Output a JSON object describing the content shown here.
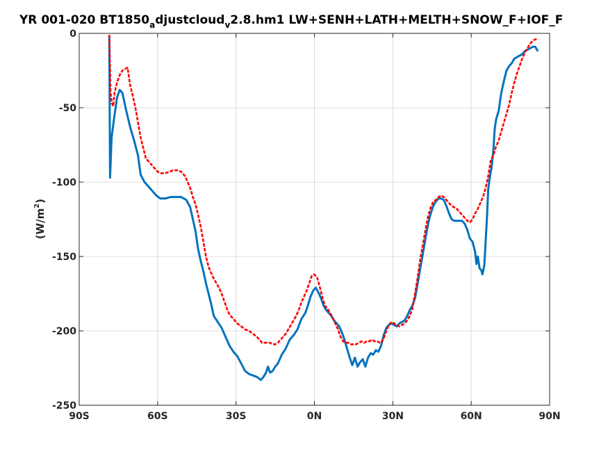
{
  "chart_data": {
    "type": "line",
    "title_parts": [
      "YR 001-020 BT1850",
      "a",
      "djustcloud",
      "v",
      "2.8.hm1 LW+SENH+LATH+MELTH+SNOW_F+IOF_F"
    ],
    "ylabel_parts": [
      "(W/m",
      "2",
      ")"
    ],
    "xlim": [
      -90,
      90
    ],
    "ylim": [
      -250,
      0
    ],
    "x_ticks": [
      -90,
      -60,
      -30,
      0,
      30,
      60,
      90
    ],
    "x_tick_labels": [
      "90S",
      "60S",
      "30S",
      "0N",
      "30N",
      "60N",
      "90N"
    ],
    "y_ticks": [
      0,
      -50,
      -100,
      -150,
      -200,
      -250
    ],
    "y_tick_labels": [
      "0",
      "-50",
      "-100",
      "-150",
      "-200",
      "-250"
    ],
    "grid": true,
    "series": [
      {
        "color": "#0072bd",
        "style": "solid",
        "points": [
          [
            -78.5,
            -2
          ],
          [
            -78.2,
            -97
          ],
          [
            -77.6,
            -70
          ],
          [
            -76.5,
            -55
          ],
          [
            -75.5,
            -43
          ],
          [
            -74.5,
            -38
          ],
          [
            -73.5,
            -40
          ],
          [
            -72,
            -52
          ],
          [
            -70.5,
            -63
          ],
          [
            -69,
            -72
          ],
          [
            -67.5,
            -82
          ],
          [
            -66.5,
            -95
          ],
          [
            -65,
            -100
          ],
          [
            -63.5,
            -103
          ],
          [
            -62,
            -106
          ],
          [
            -60.5,
            -109
          ],
          [
            -59,
            -111
          ],
          [
            -57,
            -111
          ],
          [
            -55,
            -110
          ],
          [
            -53,
            -110
          ],
          [
            -51,
            -110
          ],
          [
            -49,
            -112
          ],
          [
            -47.5,
            -117
          ],
          [
            -46.5,
            -125
          ],
          [
            -45.5,
            -133
          ],
          [
            -44.5,
            -145
          ],
          [
            -43.5,
            -153
          ],
          [
            -42.5,
            -160
          ],
          [
            -41.5,
            -168
          ],
          [
            -40.5,
            -175
          ],
          [
            -39.5,
            -182
          ],
          [
            -38.5,
            -190
          ],
          [
            -37,
            -194
          ],
          [
            -35.5,
            -198
          ],
          [
            -34,
            -204
          ],
          [
            -32.5,
            -210
          ],
          [
            -31,
            -214
          ],
          [
            -29.5,
            -217
          ],
          [
            -28,
            -222
          ],
          [
            -26.5,
            -227
          ],
          [
            -25,
            -229
          ],
          [
            -23.5,
            -230
          ],
          [
            -22,
            -231
          ],
          [
            -20.5,
            -233
          ],
          [
            -19.5,
            -231
          ],
          [
            -18.5,
            -228
          ],
          [
            -17.8,
            -224
          ],
          [
            -17,
            -228
          ],
          [
            -16,
            -227
          ],
          [
            -15,
            -224
          ],
          [
            -14,
            -222
          ],
          [
            -12.5,
            -216
          ],
          [
            -11,
            -212
          ],
          [
            -9.5,
            -206
          ],
          [
            -8,
            -203
          ],
          [
            -6.5,
            -199
          ],
          [
            -5,
            -192
          ],
          [
            -3.5,
            -188
          ],
          [
            -2.5,
            -183
          ],
          [
            -1.5,
            -177
          ],
          [
            -0.5,
            -173
          ],
          [
            0.5,
            -171
          ],
          [
            1.5,
            -174
          ],
          [
            2.5,
            -178
          ],
          [
            3.5,
            -183
          ],
          [
            4.5,
            -186
          ],
          [
            5.5,
            -188
          ],
          [
            6.5,
            -190
          ],
          [
            7.5,
            -193
          ],
          [
            8.5,
            -195
          ],
          [
            9.5,
            -197
          ],
          [
            10.5,
            -201
          ],
          [
            11.5,
            -206
          ],
          [
            12.5,
            -212
          ],
          [
            13.5,
            -218
          ],
          [
            14.5,
            -223
          ],
          [
            15.5,
            -218
          ],
          [
            16.5,
            -224
          ],
          [
            17.5,
            -221
          ],
          [
            18.5,
            -219
          ],
          [
            19.5,
            -224
          ],
          [
            20.5,
            -218
          ],
          [
            21.5,
            -215
          ],
          [
            22.5,
            -216
          ],
          [
            23.5,
            -213
          ],
          [
            24.5,
            -214
          ],
          [
            25.5,
            -210
          ],
          [
            26.5,
            -203
          ],
          [
            27.5,
            -198
          ],
          [
            28.5,
            -196
          ],
          [
            29.5,
            -195
          ],
          [
            30.5,
            -196
          ],
          [
            31.5,
            -197
          ],
          [
            32.5,
            -195
          ],
          [
            33.5,
            -194
          ],
          [
            34.5,
            -193
          ],
          [
            35.5,
            -190
          ],
          [
            36.5,
            -186
          ],
          [
            37.5,
            -183
          ],
          [
            38.5,
            -178
          ],
          [
            39.5,
            -168
          ],
          [
            40.5,
            -158
          ],
          [
            41.5,
            -148
          ],
          [
            42.5,
            -138
          ],
          [
            43.5,
            -128
          ],
          [
            44.5,
            -121
          ],
          [
            45.5,
            -116
          ],
          [
            46.5,
            -113
          ],
          [
            47.5,
            -111
          ],
          [
            48.5,
            -111
          ],
          [
            49.5,
            -112
          ],
          [
            50.5,
            -116
          ],
          [
            51.5,
            -121
          ],
          [
            52.5,
            -125
          ],
          [
            53.5,
            -126
          ],
          [
            55,
            -126
          ],
          [
            56.5,
            -126
          ],
          [
            57.5,
            -128
          ],
          [
            58.5,
            -132
          ],
          [
            59.5,
            -138
          ],
          [
            60.5,
            -140
          ],
          [
            61.5,
            -147
          ],
          [
            62,
            -155
          ],
          [
            62.5,
            -150
          ],
          [
            63.2,
            -158
          ],
          [
            63.8,
            -159
          ],
          [
            64.3,
            -162
          ],
          [
            65,
            -156
          ],
          [
            65.5,
            -140
          ],
          [
            66,
            -125
          ],
          [
            66.5,
            -105
          ],
          [
            67,
            -98
          ],
          [
            67.8,
            -90
          ],
          [
            68.5,
            -78
          ],
          [
            69,
            -64
          ],
          [
            69.5,
            -58
          ],
          [
            70.5,
            -52
          ],
          [
            71.5,
            -40
          ],
          [
            72.5,
            -32
          ],
          [
            73.5,
            -25
          ],
          [
            74.5,
            -22
          ],
          [
            75.5,
            -20
          ],
          [
            76.5,
            -17
          ],
          [
            77.5,
            -16
          ],
          [
            78.5,
            -15
          ],
          [
            79.5,
            -14
          ],
          [
            80.5,
            -12
          ],
          [
            81.5,
            -11
          ],
          [
            82.5,
            -10
          ],
          [
            83.5,
            -9
          ],
          [
            84.5,
            -9
          ],
          [
            85.5,
            -12
          ]
        ]
      },
      {
        "color": "#ff0000",
        "style": "dashed",
        "points": [
          [
            -78.5,
            -1
          ],
          [
            -78,
            -40
          ],
          [
            -77.5,
            -47
          ],
          [
            -77,
            -49
          ],
          [
            -76.5,
            -40
          ],
          [
            -75.5,
            -33
          ],
          [
            -74.5,
            -28
          ],
          [
            -73.5,
            -25
          ],
          [
            -72.5,
            -24
          ],
          [
            -71.5,
            -23
          ],
          [
            -70.5,
            -35
          ],
          [
            -69.5,
            -42
          ],
          [
            -68.5,
            -50
          ],
          [
            -67.5,
            -60
          ],
          [
            -66.5,
            -70
          ],
          [
            -65.5,
            -77
          ],
          [
            -64.5,
            -84
          ],
          [
            -63,
            -87
          ],
          [
            -61.5,
            -90
          ],
          [
            -60,
            -93
          ],
          [
            -58.5,
            -94
          ],
          [
            -57,
            -94
          ],
          [
            -55.5,
            -93
          ],
          [
            -54,
            -92
          ],
          [
            -52.5,
            -92
          ],
          [
            -51,
            -93
          ],
          [
            -49.5,
            -96
          ],
          [
            -48.5,
            -100
          ],
          [
            -47.5,
            -104
          ],
          [
            -46.5,
            -110
          ],
          [
            -45.5,
            -115
          ],
          [
            -44.5,
            -122
          ],
          [
            -43.5,
            -130
          ],
          [
            -42.5,
            -140
          ],
          [
            -41.5,
            -150
          ],
          [
            -40.5,
            -157
          ],
          [
            -39.5,
            -161
          ],
          [
            -38.5,
            -165
          ],
          [
            -37.5,
            -168
          ],
          [
            -36.5,
            -171
          ],
          [
            -35.5,
            -175
          ],
          [
            -34.5,
            -180
          ],
          [
            -33.5,
            -185
          ],
          [
            -32.5,
            -189
          ],
          [
            -31,
            -192
          ],
          [
            -29.5,
            -195
          ],
          [
            -28,
            -197
          ],
          [
            -26.5,
            -199
          ],
          [
            -25,
            -200
          ],
          [
            -23.5,
            -202
          ],
          [
            -22,
            -204
          ],
          [
            -21,
            -206
          ],
          [
            -20,
            -208
          ],
          [
            -19,
            -208
          ],
          [
            -18,
            -208
          ],
          [
            -17,
            -208
          ],
          [
            -16,
            -209
          ],
          [
            -15,
            -209
          ],
          [
            -14,
            -208
          ],
          [
            -13,
            -206
          ],
          [
            -12,
            -204
          ],
          [
            -11,
            -202
          ],
          [
            -10,
            -199
          ],
          [
            -9,
            -196
          ],
          [
            -8,
            -193
          ],
          [
            -7,
            -190
          ],
          [
            -6,
            -186
          ],
          [
            -5,
            -181
          ],
          [
            -4,
            -177
          ],
          [
            -3,
            -173
          ],
          [
            -2,
            -168
          ],
          [
            -1,
            -163
          ],
          [
            0,
            -162
          ],
          [
            1,
            -164
          ],
          [
            2,
            -170
          ],
          [
            3,
            -177
          ],
          [
            4,
            -183
          ],
          [
            5,
            -185
          ],
          [
            6,
            -188
          ],
          [
            7,
            -191
          ],
          [
            8,
            -195
          ],
          [
            9,
            -199
          ],
          [
            10,
            -204
          ],
          [
            11,
            -207
          ],
          [
            12,
            -208
          ],
          [
            13,
            -208
          ],
          [
            14,
            -209
          ],
          [
            15,
            -209
          ],
          [
            16,
            -209
          ],
          [
            17,
            -208
          ],
          [
            18,
            -207
          ],
          [
            19,
            -208
          ],
          [
            20,
            -207
          ],
          [
            21,
            -207
          ],
          [
            22,
            -206
          ],
          [
            23,
            -207
          ],
          [
            24,
            -207
          ],
          [
            25,
            -208
          ],
          [
            25.5,
            -208
          ],
          [
            26.5,
            -205
          ],
          [
            27.5,
            -200
          ],
          [
            28.5,
            -196
          ],
          [
            29.5,
            -194
          ],
          [
            30.5,
            -195
          ],
          [
            31.5,
            -196
          ],
          [
            32.5,
            -197
          ],
          [
            33.5,
            -196
          ],
          [
            34.5,
            -195
          ],
          [
            35.5,
            -193
          ],
          [
            36.5,
            -190
          ],
          [
            37.5,
            -185
          ],
          [
            38.5,
            -175
          ],
          [
            39.5,
            -164
          ],
          [
            40.5,
            -152
          ],
          [
            41.5,
            -142
          ],
          [
            42.5,
            -132
          ],
          [
            43.5,
            -123
          ],
          [
            44.5,
            -117
          ],
          [
            45.5,
            -113
          ],
          [
            46.5,
            -112
          ],
          [
            47.5,
            -110
          ],
          [
            48.5,
            -109
          ],
          [
            49.5,
            -110
          ],
          [
            50.5,
            -112
          ],
          [
            51.5,
            -114
          ],
          [
            52.5,
            -116
          ],
          [
            53.5,
            -117
          ],
          [
            54.5,
            -118
          ],
          [
            55.5,
            -120
          ],
          [
            56.5,
            -122
          ],
          [
            57.5,
            -124
          ],
          [
            58.5,
            -126
          ],
          [
            59.5,
            -127
          ],
          [
            60.5,
            -125
          ],
          [
            61.5,
            -121
          ],
          [
            62.5,
            -118
          ],
          [
            63.5,
            -114
          ],
          [
            64.5,
            -110
          ],
          [
            65.5,
            -104
          ],
          [
            66.5,
            -96
          ],
          [
            67.5,
            -85
          ],
          [
            68.5,
            -82
          ],
          [
            69.5,
            -76
          ],
          [
            70.5,
            -72
          ],
          [
            71.5,
            -66
          ],
          [
            72.5,
            -60
          ],
          [
            73.5,
            -54
          ],
          [
            74.5,
            -48
          ],
          [
            75.5,
            -40
          ],
          [
            76.5,
            -33
          ],
          [
            77.5,
            -27
          ],
          [
            78.5,
            -22
          ],
          [
            79.5,
            -17
          ],
          [
            80.5,
            -13
          ],
          [
            81.5,
            -10
          ],
          [
            82.5,
            -7
          ],
          [
            83.5,
            -5
          ],
          [
            84.5,
            -4
          ],
          [
            85.5,
            -4
          ]
        ]
      }
    ]
  }
}
